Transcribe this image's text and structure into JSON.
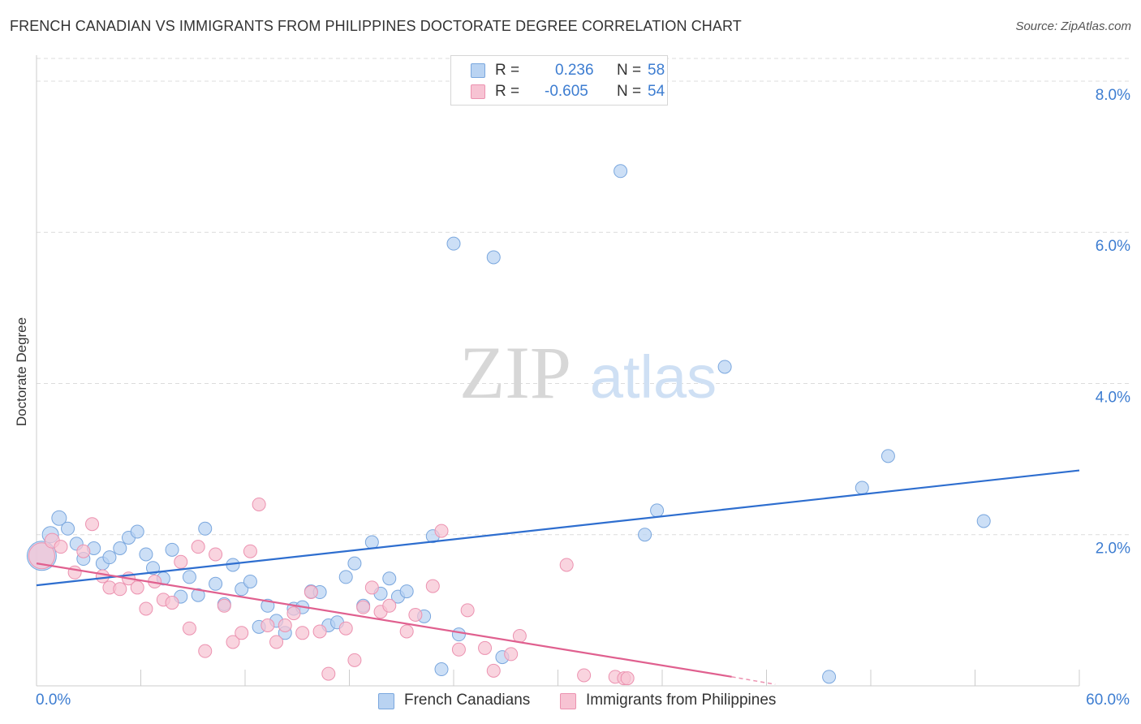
{
  "title": "FRENCH CANADIAN VS IMMIGRANTS FROM PHILIPPINES DOCTORATE DEGREE CORRELATION CHART",
  "source": "Source: ZipAtlas.com",
  "watermark": {
    "part1": "ZIP",
    "part2": "atlas"
  },
  "colors": {
    "blue_fill": "#b9d3f2",
    "blue_stroke": "#7aa7de",
    "blue_line": "#2e6ecf",
    "pink_fill": "#f7c3d3",
    "pink_stroke": "#ec92b0",
    "pink_line": "#e0608f",
    "axis_text": "#3d7dd1",
    "grid": "#dcdcdc"
  },
  "legend_top": {
    "rows": [
      {
        "r_label": "R =",
        "r_value": "0.236",
        "n_label": "N =",
        "n_value": "58"
      },
      {
        "r_label": "R =",
        "r_value": "-0.605",
        "n_label": "N =",
        "n_value": "54"
      }
    ]
  },
  "legend_bottom": [
    "French Canadians",
    "Immigrants from Philippines"
  ],
  "chart_data": {
    "type": "scatter",
    "title": "FRENCH CANADIAN VS IMMIGRANTS FROM PHILIPPINES DOCTORATE DEGREE CORRELATION CHART",
    "xlabel": "",
    "ylabel": "Doctorate Degree",
    "xlim": [
      0,
      60
    ],
    "ylim": [
      0,
      8.3
    ],
    "x_tick_labels": [
      "0.0%",
      "60.0%"
    ],
    "y_ticks": [
      2,
      4,
      6,
      8
    ],
    "y_tick_labels": [
      "2.0%",
      "4.0%",
      "6.0%",
      "8.0%"
    ],
    "grid": "horizontal dashed",
    "legend": "bottom-center",
    "series": [
      {
        "name": "French Canadians",
        "r": 0.236,
        "n": 58,
        "trend": {
          "x": [
            0,
            60
          ],
          "y": [
            1.33,
            2.85
          ]
        },
        "points": [
          [
            0.3,
            1.72,
            18
          ],
          [
            0.8,
            2.0,
            10
          ],
          [
            1.3,
            2.22,
            9
          ],
          [
            1.8,
            2.08,
            8
          ],
          [
            2.3,
            1.88,
            8
          ],
          [
            2.7,
            1.68,
            8
          ],
          [
            3.3,
            1.82,
            8
          ],
          [
            3.8,
            1.62,
            8
          ],
          [
            4.2,
            1.7,
            8
          ],
          [
            4.8,
            1.82,
            8
          ],
          [
            5.3,
            1.96,
            8
          ],
          [
            5.8,
            2.04,
            8
          ],
          [
            6.3,
            1.74,
            8
          ],
          [
            6.7,
            1.56,
            8
          ],
          [
            7.3,
            1.42,
            8
          ],
          [
            7.8,
            1.8,
            8
          ],
          [
            8.3,
            1.18,
            8
          ],
          [
            8.8,
            1.44,
            8
          ],
          [
            9.3,
            1.2,
            8
          ],
          [
            9.7,
            2.08,
            8
          ],
          [
            10.3,
            1.35,
            8
          ],
          [
            10.8,
            1.08,
            8
          ],
          [
            11.3,
            1.6,
            8
          ],
          [
            11.8,
            1.28,
            8
          ],
          [
            12.3,
            1.38,
            8
          ],
          [
            12.8,
            0.78,
            8
          ],
          [
            13.3,
            1.06,
            8
          ],
          [
            13.8,
            0.86,
            8
          ],
          [
            14.3,
            0.7,
            8
          ],
          [
            14.8,
            1.02,
            8
          ],
          [
            15.3,
            1.04,
            8
          ],
          [
            15.8,
            1.25,
            8
          ],
          [
            16.3,
            1.24,
            8
          ],
          [
            16.8,
            0.8,
            8
          ],
          [
            17.3,
            0.84,
            8
          ],
          [
            17.8,
            1.44,
            8
          ],
          [
            18.3,
            1.62,
            8
          ],
          [
            18.8,
            1.06,
            8
          ],
          [
            19.3,
            1.9,
            8
          ],
          [
            19.8,
            1.22,
            8
          ],
          [
            20.3,
            1.42,
            8
          ],
          [
            20.8,
            1.18,
            8
          ],
          [
            21.3,
            1.25,
            8
          ],
          [
            22.3,
            0.92,
            8
          ],
          [
            22.8,
            1.98,
            8
          ],
          [
            23.3,
            0.22,
            8
          ],
          [
            24.0,
            5.85,
            8
          ],
          [
            24.3,
            0.68,
            8
          ],
          [
            26.3,
            5.67,
            8
          ],
          [
            26.8,
            0.38,
            8
          ],
          [
            33.6,
            6.81,
            8
          ],
          [
            35.0,
            2.0,
            8
          ],
          [
            35.7,
            2.32,
            8
          ],
          [
            39.6,
            4.22,
            8
          ],
          [
            45.6,
            0.12,
            8
          ],
          [
            47.5,
            2.62,
            8
          ],
          [
            49.0,
            3.04,
            8
          ],
          [
            54.5,
            2.18,
            8
          ]
        ]
      },
      {
        "name": "Immigrants from Philippines",
        "r": -0.605,
        "n": 54,
        "trend": {
          "x": [
            0,
            40
          ],
          "y": [
            1.62,
            0.12
          ]
        },
        "trend_dashed": {
          "x": [
            40,
            42.5
          ],
          "y": [
            0.12,
            0.02
          ]
        },
        "points": [
          [
            0.3,
            1.72,
            16
          ],
          [
            0.9,
            1.92,
            9
          ],
          [
            1.4,
            1.84,
            8
          ],
          [
            2.2,
            1.5,
            8
          ],
          [
            2.7,
            1.78,
            8
          ],
          [
            3.2,
            2.14,
            8
          ],
          [
            3.8,
            1.45,
            8
          ],
          [
            4.2,
            1.3,
            8
          ],
          [
            4.8,
            1.28,
            8
          ],
          [
            5.3,
            1.42,
            8
          ],
          [
            5.8,
            1.3,
            8
          ],
          [
            6.3,
            1.02,
            8
          ],
          [
            6.8,
            1.38,
            8
          ],
          [
            7.3,
            1.14,
            8
          ],
          [
            7.8,
            1.1,
            8
          ],
          [
            8.3,
            1.64,
            8
          ],
          [
            8.8,
            0.76,
            8
          ],
          [
            9.3,
            1.84,
            8
          ],
          [
            9.7,
            0.46,
            8
          ],
          [
            10.3,
            1.74,
            8
          ],
          [
            10.8,
            1.06,
            8
          ],
          [
            11.3,
            0.58,
            8
          ],
          [
            11.8,
            0.7,
            8
          ],
          [
            12.3,
            1.78,
            8
          ],
          [
            12.8,
            2.4,
            8
          ],
          [
            13.3,
            0.8,
            8
          ],
          [
            13.8,
            0.58,
            8
          ],
          [
            14.3,
            0.8,
            8
          ],
          [
            14.8,
            0.96,
            8
          ],
          [
            15.3,
            0.7,
            8
          ],
          [
            15.8,
            1.24,
            8
          ],
          [
            16.3,
            0.72,
            8
          ],
          [
            16.8,
            0.16,
            8
          ],
          [
            17.8,
            0.76,
            8
          ],
          [
            18.3,
            0.34,
            8
          ],
          [
            18.8,
            1.04,
            8
          ],
          [
            19.3,
            1.3,
            8
          ],
          [
            19.8,
            0.98,
            8
          ],
          [
            20.3,
            1.06,
            8
          ],
          [
            21.3,
            0.72,
            8
          ],
          [
            21.8,
            0.94,
            8
          ],
          [
            22.8,
            1.32,
            8
          ],
          [
            23.3,
            2.05,
            8
          ],
          [
            24.3,
            0.48,
            8
          ],
          [
            24.8,
            1.0,
            8
          ],
          [
            25.8,
            0.5,
            8
          ],
          [
            26.3,
            0.2,
            8
          ],
          [
            27.3,
            0.42,
            8
          ],
          [
            27.8,
            0.66,
            8
          ],
          [
            30.5,
            1.6,
            8
          ],
          [
            31.5,
            0.14,
            8
          ],
          [
            33.3,
            0.12,
            8
          ],
          [
            33.8,
            0.1,
            8
          ],
          [
            34.0,
            0.1,
            8
          ]
        ]
      }
    ]
  }
}
